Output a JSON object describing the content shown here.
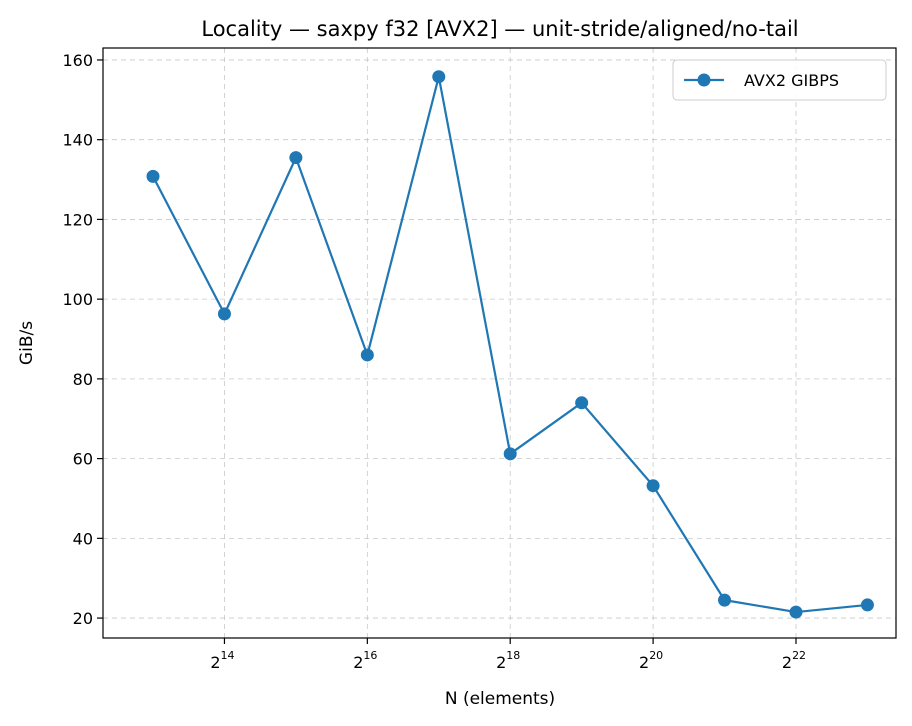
{
  "chart_data": {
    "type": "line",
    "title": "Locality — saxpy f32 [AVX2] — unit-stride/aligned/no-tail",
    "xlabel": "N (elements)",
    "ylabel": "GiB/s",
    "x_scale": "log2",
    "xlim_exponent": [
      12.3,
      23.4
    ],
    "x_tick_base": "2",
    "x_tick_exponents": [
      "14",
      "16",
      "18",
      "20",
      "22"
    ],
    "ylim": [
      15,
      163
    ],
    "y_ticks": [
      20,
      40,
      60,
      80,
      100,
      120,
      140,
      160
    ],
    "grid": true,
    "grid_style": "dashed",
    "legend_placement": "top-right",
    "series": [
      {
        "name": "AVX2 GIBPS",
        "color": "#1f77b4",
        "marker": "circle",
        "x_exponent": [
          13,
          14,
          15,
          16,
          17,
          18,
          19,
          20,
          21,
          22,
          23
        ],
        "y": [
          130.8,
          96.3,
          135.5,
          86.0,
          155.8,
          61.2,
          74.0,
          53.2,
          24.5,
          21.5,
          23.3
        ]
      }
    ]
  }
}
